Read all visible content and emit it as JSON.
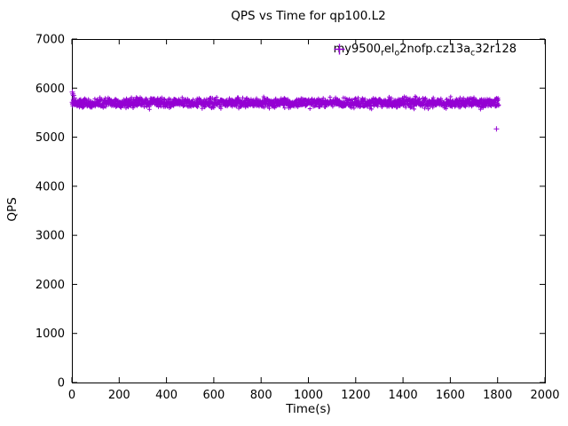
{
  "chart_data": {
    "type": "scatter",
    "title": "QPS vs Time for qp100.L2",
    "xlabel": "Time(s)",
    "ylabel": "QPS",
    "xlim": [
      0,
      2000
    ],
    "ylim": [
      0,
      7000
    ],
    "xticks": [
      0,
      200,
      400,
      600,
      800,
      1000,
      1200,
      1400,
      1600,
      1800,
      2000
    ],
    "yticks": [
      0,
      1000,
      2000,
      3000,
      4000,
      5000,
      6000,
      7000
    ],
    "grid": false,
    "legend_position": "top-right-inside",
    "marker": "plus",
    "marker_color": "#9400D3",
    "axis_color": "#000000",
    "series": [
      {
        "name": "my9500_rel_o2nofp.cz13a_c32r128",
        "band": {
          "x_start": 0,
          "x_end": 1805,
          "n_points": 1800,
          "mean_qps": 5700,
          "jitter_qps": 140
        },
        "outliers": [
          [
            2,
            5920
          ],
          [
            4,
            5880
          ],
          [
            7,
            5850
          ],
          [
            10,
            5800
          ],
          [
            1795,
            5170
          ]
        ]
      }
    ],
    "legend_segments": [
      {
        "text": "my9500"
      },
      {
        "text": "r",
        "sub": true
      },
      {
        "text": "el"
      },
      {
        "text": "o",
        "sub": true
      },
      {
        "text": "2nofp.cz13a"
      },
      {
        "text": "c",
        "sub": true
      },
      {
        "text": "32r128"
      }
    ]
  }
}
